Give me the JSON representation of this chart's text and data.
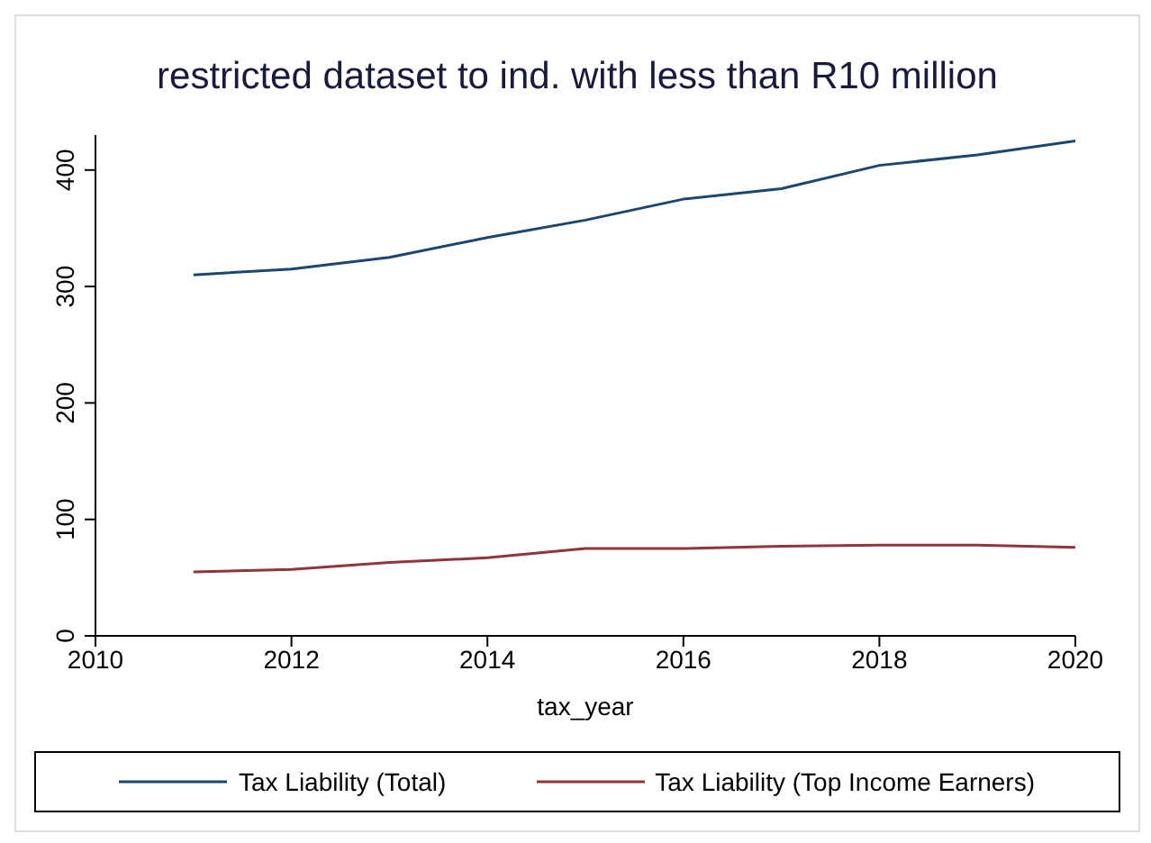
{
  "chart_data": {
    "type": "line",
    "title": "restricted dataset to ind. with less than R10 million",
    "xlabel": "tax_year",
    "x": [
      2011,
      2012,
      2013,
      2014,
      2015,
      2016,
      2017,
      2018,
      2019,
      2020
    ],
    "series": [
      {
        "name": "Tax Liability (Total)",
        "color": "#1a476f",
        "values": [
          310,
          315,
          325,
          342,
          357,
          375,
          384,
          404,
          413,
          425
        ]
      },
      {
        "name": "Tax Liability (Top Income Earners)",
        "color": "#90353b",
        "values": [
          55,
          57,
          63,
          67,
          75,
          75,
          77,
          78,
          78,
          76
        ]
      }
    ],
    "xlim": [
      2010,
      2020
    ],
    "xticks": [
      2010,
      2012,
      2014,
      2016,
      2018,
      2020
    ],
    "ylim": [
      0,
      430
    ],
    "yticks": [
      0,
      100,
      200,
      300,
      400
    ],
    "grid": false,
    "legend": "bottom",
    "marker": "none",
    "line_style": "solid"
  }
}
